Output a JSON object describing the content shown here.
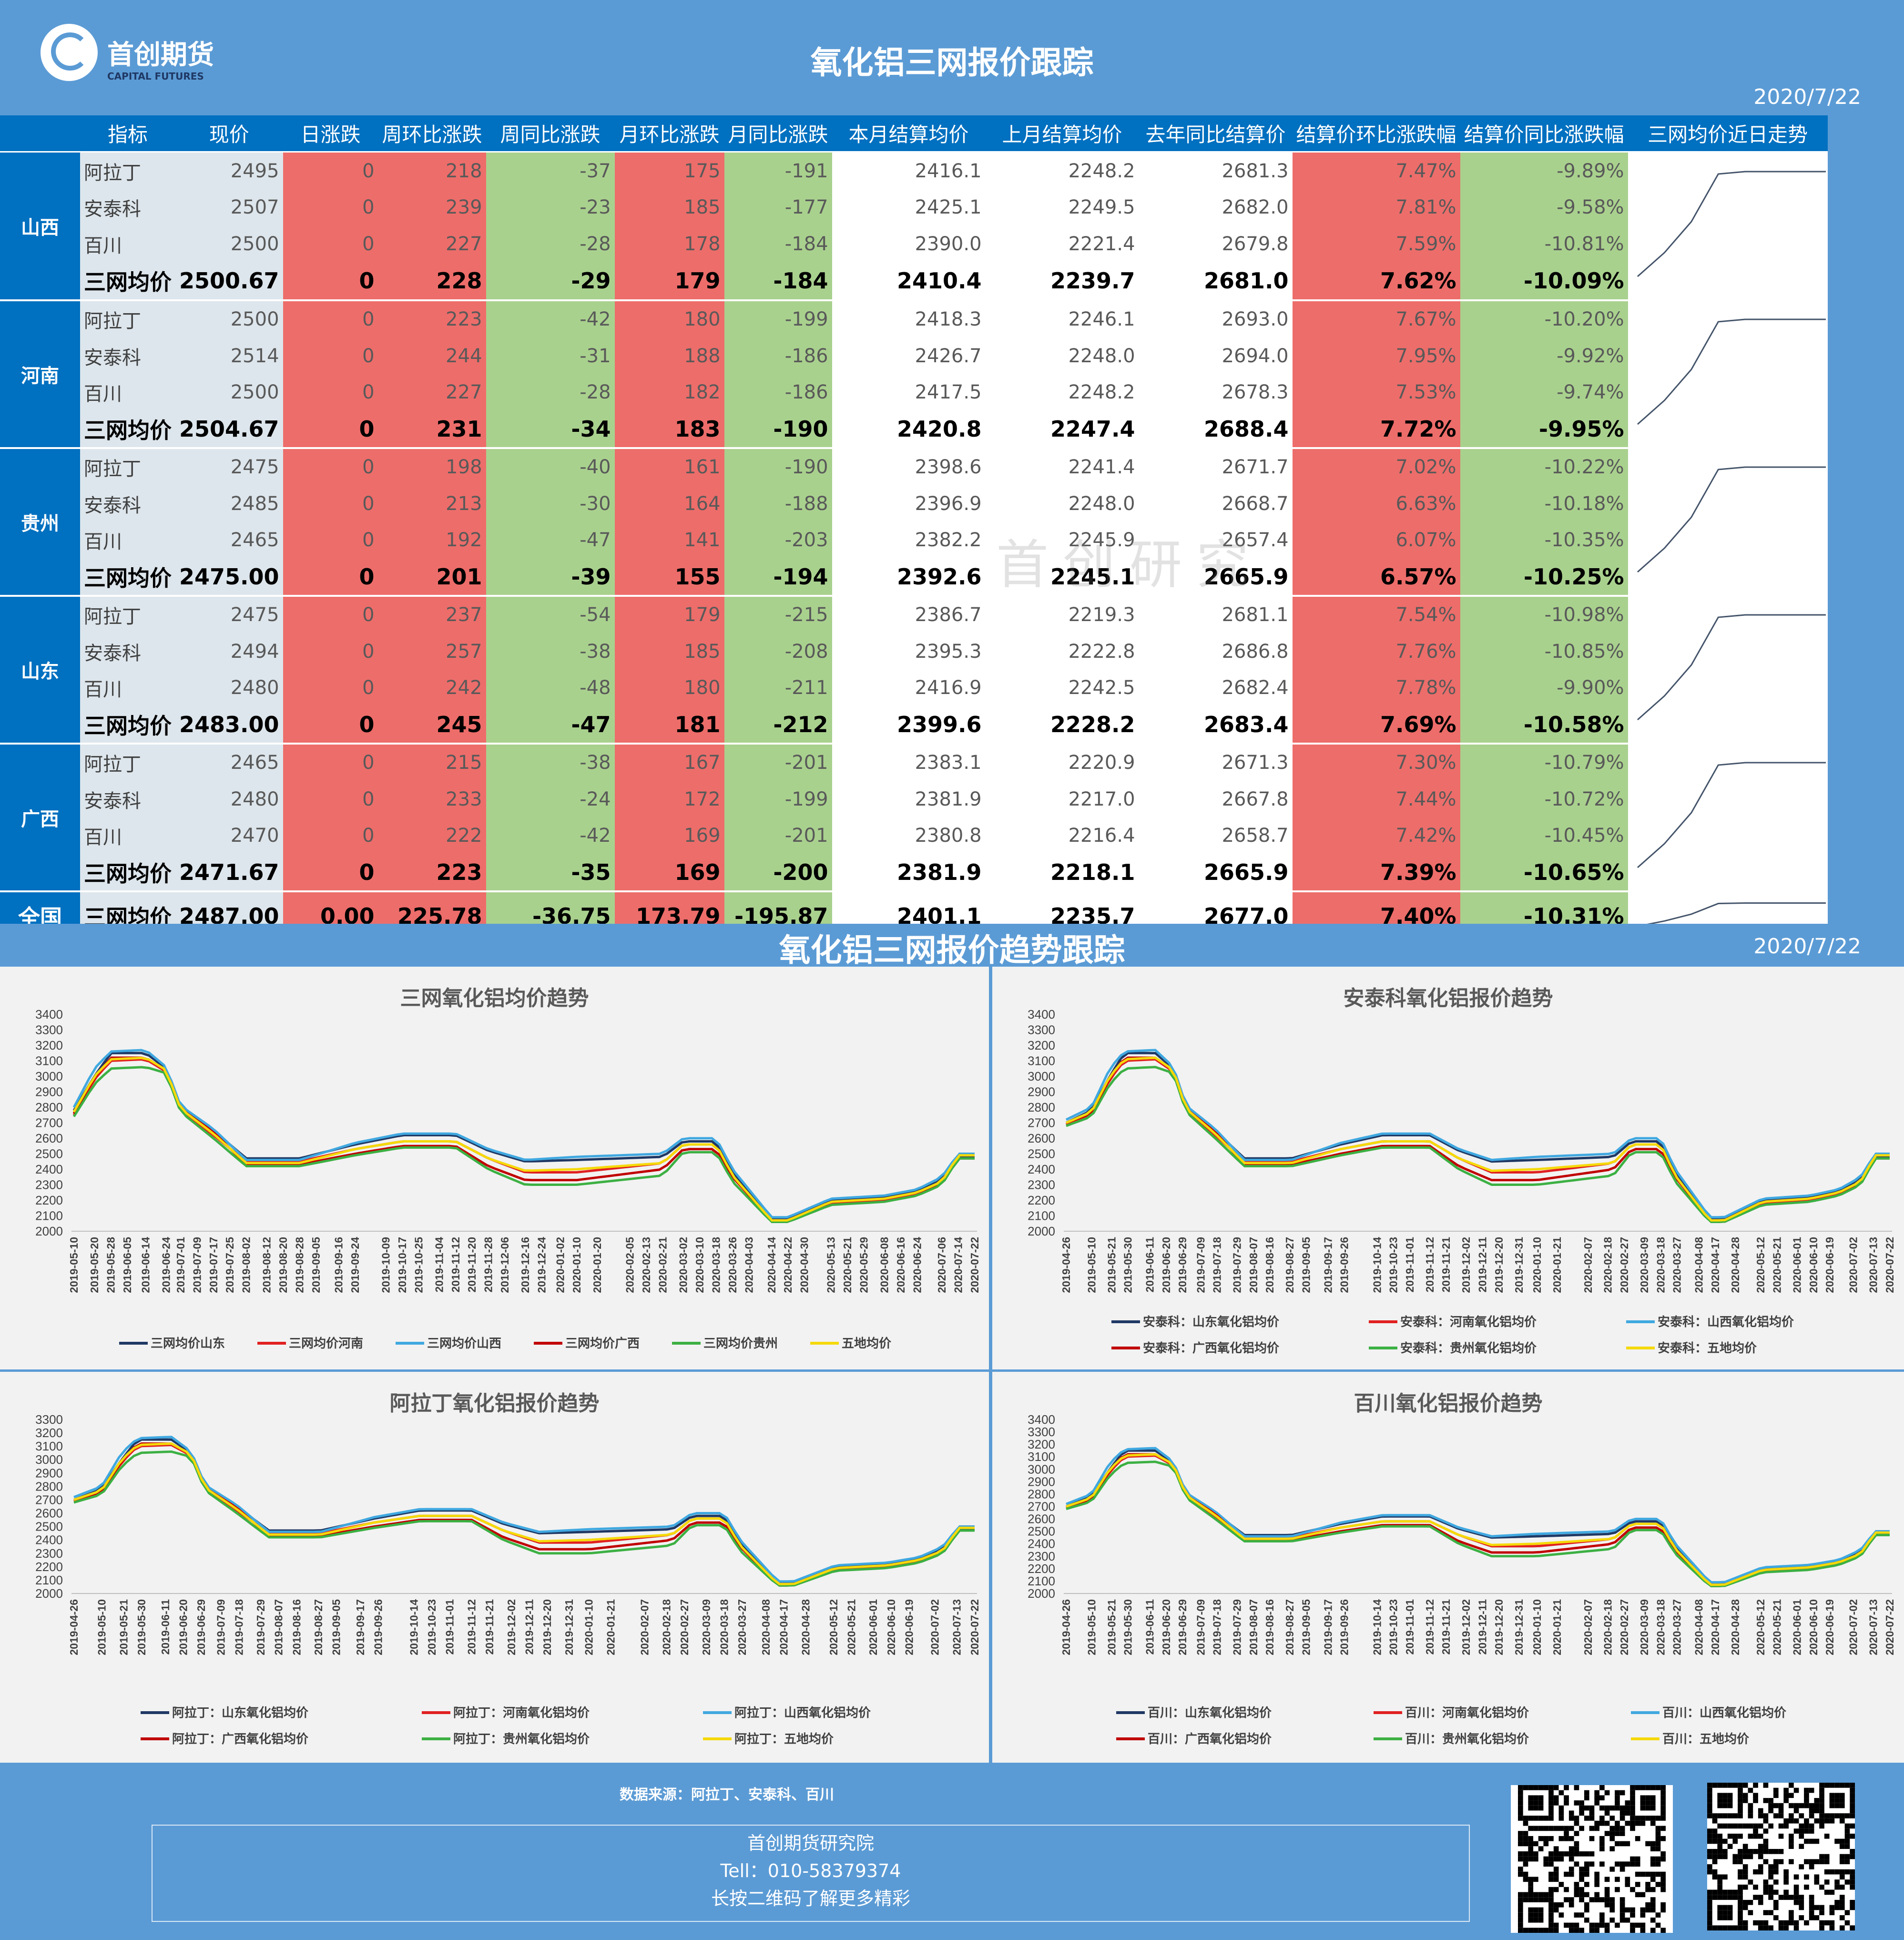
{
  "header": {
    "logo_name": "首创期货",
    "logo_en": "CAPITAL FUTURES",
    "title": "氧化铝三网报价跟踪",
    "date": "2020/7/22"
  },
  "table": {
    "columns": [
      "指标",
      "现价",
      "日涨跌",
      "周环比涨跌",
      "周同比涨跌",
      "月环比涨跌",
      "月同比涨跌",
      "本月结算均价",
      "上月结算均价",
      "去年同比结算价",
      "结算价环比涨跌幅",
      "结算价同比涨跌幅",
      "三网均价近日走势"
    ],
    "groups": [
      {
        "region": "山西",
        "rows": [
          {
            "name": "阿拉丁",
            "v": [
              "2495",
              "0",
              "218",
              "-37",
              "175",
              "-191",
              "2416.1",
              "2248.2",
              "2681.3",
              "7.47%",
              "-9.89%"
            ]
          },
          {
            "name": "安泰科",
            "v": [
              "2507",
              "0",
              "239",
              "-23",
              "185",
              "-177",
              "2425.1",
              "2249.5",
              "2682.0",
              "7.81%",
              "-9.58%"
            ]
          },
          {
            "name": "百川",
            "v": [
              "2500",
              "0",
              "227",
              "-28",
              "178",
              "-184",
              "2390.0",
              "2221.4",
              "2679.8",
              "7.59%",
              "-10.81%"
            ]
          },
          {
            "name": "三网均价",
            "v": [
              "2500.67",
              "0",
              "228",
              "-29",
              "179",
              "-184",
              "2410.4",
              "2239.7",
              "2681.0",
              "7.62%",
              "-10.09%"
            ]
          }
        ]
      },
      {
        "region": "河南",
        "rows": [
          {
            "name": "阿拉丁",
            "v": [
              "2500",
              "0",
              "223",
              "-42",
              "180",
              "-199",
              "2418.3",
              "2246.1",
              "2693.0",
              "7.67%",
              "-10.20%"
            ]
          },
          {
            "name": "安泰科",
            "v": [
              "2514",
              "0",
              "244",
              "-31",
              "188",
              "-186",
              "2426.7",
              "2248.0",
              "2694.0",
              "7.95%",
              "-9.92%"
            ]
          },
          {
            "name": "百川",
            "v": [
              "2500",
              "0",
              "227",
              "-28",
              "182",
              "-186",
              "2417.5",
              "2248.2",
              "2678.3",
              "7.53%",
              "-9.74%"
            ]
          },
          {
            "name": "三网均价",
            "v": [
              "2504.67",
              "0",
              "231",
              "-34",
              "183",
              "-190",
              "2420.8",
              "2247.4",
              "2688.4",
              "7.72%",
              "-9.95%"
            ]
          }
        ]
      },
      {
        "region": "贵州",
        "rows": [
          {
            "name": "阿拉丁",
            "v": [
              "2475",
              "0",
              "198",
              "-40",
              "161",
              "-190",
              "2398.6",
              "2241.4",
              "2671.7",
              "7.02%",
              "-10.22%"
            ]
          },
          {
            "name": "安泰科",
            "v": [
              "2485",
              "0",
              "213",
              "-30",
              "164",
              "-188",
              "2396.9",
              "2248.0",
              "2668.7",
              "6.63%",
              "-10.18%"
            ]
          },
          {
            "name": "百川",
            "v": [
              "2465",
              "0",
              "192",
              "-47",
              "141",
              "-203",
              "2382.2",
              "2245.9",
              "2657.4",
              "6.07%",
              "-10.35%"
            ]
          },
          {
            "name": "三网均价",
            "v": [
              "2475.00",
              "0",
              "201",
              "-39",
              "155",
              "-194",
              "2392.6",
              "2245.1",
              "2665.9",
              "6.57%",
              "-10.25%"
            ]
          }
        ]
      },
      {
        "region": "山东",
        "rows": [
          {
            "name": "阿拉丁",
            "v": [
              "2475",
              "0",
              "237",
              "-54",
              "179",
              "-215",
              "2386.7",
              "2219.3",
              "2681.1",
              "7.54%",
              "-10.98%"
            ]
          },
          {
            "name": "安泰科",
            "v": [
              "2494",
              "0",
              "257",
              "-38",
              "185",
              "-208",
              "2395.3",
              "2222.8",
              "2686.8",
              "7.76%",
              "-10.85%"
            ]
          },
          {
            "name": "百川",
            "v": [
              "2480",
              "0",
              "242",
              "-48",
              "180",
              "-211",
              "2416.9",
              "2242.5",
              "2682.4",
              "7.78%",
              "-9.90%"
            ]
          },
          {
            "name": "三网均价",
            "v": [
              "2483.00",
              "0",
              "245",
              "-47",
              "181",
              "-212",
              "2399.6",
              "2228.2",
              "2683.4",
              "7.69%",
              "-10.58%"
            ]
          }
        ]
      },
      {
        "region": "广西",
        "rows": [
          {
            "name": "阿拉丁",
            "v": [
              "2465",
              "0",
              "215",
              "-38",
              "167",
              "-201",
              "2383.1",
              "2220.9",
              "2671.3",
              "7.30%",
              "-10.79%"
            ]
          },
          {
            "name": "安泰科",
            "v": [
              "2480",
              "0",
              "233",
              "-24",
              "172",
              "-199",
              "2381.9",
              "2217.0",
              "2667.8",
              "7.44%",
              "-10.72%"
            ]
          },
          {
            "name": "百川",
            "v": [
              "2470",
              "0",
              "222",
              "-42",
              "169",
              "-201",
              "2380.8",
              "2216.4",
              "2658.7",
              "7.42%",
              "-10.45%"
            ]
          },
          {
            "name": "三网均价",
            "v": [
              "2471.67",
              "0",
              "223",
              "-35",
              "169",
              "-200",
              "2381.9",
              "2218.1",
              "2665.9",
              "7.39%",
              "-10.65%"
            ]
          }
        ]
      },
      {
        "region": "全国",
        "rows": [
          {
            "name": "三网均价",
            "v": [
              "2487.00",
              "0.00",
              "225.78",
              "-36.75",
              "173.79",
              "-195.87",
              "2401.1",
              "2235.7",
              "2677.0",
              "7.40%",
              "-10.31%"
            ]
          }
        ]
      }
    ],
    "sparkline_values": [
      2280,
      2330,
      2395,
      2495,
      2500,
      2500,
      2500,
      2500
    ]
  },
  "section2": {
    "title": "氧化铝三网报价趋势跟踪",
    "date": "2020/7/22"
  },
  "watermark": "首创研究",
  "chart_data": [
    {
      "type": "line",
      "title": "三网氧化铝均价趋势",
      "ylim": [
        2000,
        3400
      ],
      "x": [
        "2019-05-10",
        "2019-05-20",
        "2019-05-28",
        "2019-06-05",
        "2019-06-14",
        "2019-06-24",
        "2019-07-01",
        "2019-07-09",
        "2019-07-17",
        "2019-07-25",
        "2019-08-02",
        "2019-08-12",
        "2019-08-20",
        "2019-08-28",
        "2019-09-05",
        "2019-09-16",
        "2019-09-24",
        "2019-10-09",
        "2019-10-17",
        "2019-10-25",
        "2019-11-04",
        "2019-11-12",
        "2019-11-20",
        "2019-11-28",
        "2019-12-06",
        "2019-12-16",
        "2019-12-24",
        "2020-01-02",
        "2020-01-10",
        "2020-01-20",
        "2020-02-05",
        "2020-02-13",
        "2020-02-21",
        "2020-03-02",
        "2020-03-10",
        "2020-03-18",
        "2020-03-26",
        "2020-04-03",
        "2020-04-14",
        "2020-04-22",
        "2020-04-30",
        "2020-05-13",
        "2020-05-21",
        "2020-05-29",
        "2020-06-08",
        "2020-06-16",
        "2020-06-24",
        "2020-07-06",
        "2020-07-14",
        "2020-07-22"
      ],
      "series": [
        {
          "name": "三网均价山东",
          "color": "#1f3864"
        },
        {
          "name": "三网均价河南",
          "color": "#e02020"
        },
        {
          "name": "三网均价山西",
          "color": "#40a8e0"
        },
        {
          "name": "三网均价广西",
          "color": "#c00000"
        },
        {
          "name": "三网均价贵州",
          "color": "#3cb043"
        },
        {
          "name": "五地均价",
          "color": "#f5d90a"
        }
      ]
    },
    {
      "type": "line",
      "title": "安泰科氧化铝报价趋势",
      "ylim": [
        2000,
        3400
      ],
      "x": [
        "2019-04-26",
        "2019-05-10",
        "2019-05-21",
        "2019-05-30",
        "2019-06-11",
        "2019-06-20",
        "2019-06-29",
        "2019-07-09",
        "2019-07-18",
        "2019-07-29",
        "2019-08-07",
        "2019-08-16",
        "2019-08-27",
        "2019-09-05",
        "2019-09-17",
        "2019-09-26",
        "2019-10-14",
        "2019-10-23",
        "2019-11-01",
        "2019-11-12",
        "2019-11-21",
        "2019-12-02",
        "2019-12-11",
        "2019-12-20",
        "2019-12-31",
        "2020-01-10",
        "2020-01-21",
        "2020-02-07",
        "2020-02-18",
        "2020-02-27",
        "2020-03-09",
        "2020-03-18",
        "2020-03-27",
        "2020-04-08",
        "2020-04-17",
        "2020-04-28",
        "2020-05-12",
        "2020-05-21",
        "2020-06-01",
        "2020-06-10",
        "2020-06-19",
        "2020-07-02",
        "2020-07-13",
        "2020-07-22"
      ],
      "series": [
        {
          "name": "安泰科：山东氧化铝均价",
          "color": "#1f3864"
        },
        {
          "name": "安泰科：河南氧化铝均价",
          "color": "#e02020"
        },
        {
          "name": "安泰科：山西氧化铝均价",
          "color": "#40a8e0"
        },
        {
          "name": "安泰科：广西氧化铝均价",
          "color": "#c00000"
        },
        {
          "name": "安泰科：贵州氧化铝均价",
          "color": "#3cb043"
        },
        {
          "name": "安泰科：五地均价",
          "color": "#f5d90a"
        }
      ]
    },
    {
      "type": "line",
      "title": "阿拉丁氧化铝报价趋势",
      "ylim": [
        2000,
        3300
      ],
      "x": [
        "2019-04-26",
        "2019-05-10",
        "2019-05-21",
        "2019-05-30",
        "2019-06-11",
        "2019-06-20",
        "2019-06-29",
        "2019-07-09",
        "2019-07-18",
        "2019-07-29",
        "2019-08-07",
        "2019-08-16",
        "2019-08-27",
        "2019-09-05",
        "2019-09-17",
        "2019-09-26",
        "2019-10-14",
        "2019-10-23",
        "2019-11-01",
        "2019-11-12",
        "2019-11-21",
        "2019-12-02",
        "2019-12-11",
        "2019-12-20",
        "2019-12-31",
        "2020-01-10",
        "2020-01-21",
        "2020-02-07",
        "2020-02-18",
        "2020-02-27",
        "2020-03-09",
        "2020-03-18",
        "2020-03-27",
        "2020-04-08",
        "2020-04-17",
        "2020-04-28",
        "2020-05-12",
        "2020-05-21",
        "2020-06-01",
        "2020-06-10",
        "2020-06-19",
        "2020-07-02",
        "2020-07-13",
        "2020-07-22"
      ],
      "series": [
        {
          "name": "阿拉丁：山东氧化铝均价",
          "color": "#1f3864"
        },
        {
          "name": "阿拉丁：河南氧化铝均价",
          "color": "#e02020"
        },
        {
          "name": "阿拉丁：山西氧化铝均价",
          "color": "#40a8e0"
        },
        {
          "name": "阿拉丁：广西氧化铝均价",
          "color": "#c00000"
        },
        {
          "name": "阿拉丁：贵州氧化铝均价",
          "color": "#3cb043"
        },
        {
          "name": "阿拉丁：五地均价",
          "color": "#f5d90a"
        }
      ]
    },
    {
      "type": "line",
      "title": "百川氧化铝报价趋势",
      "ylim": [
        2000,
        3400
      ],
      "x": [
        "2019-04-26",
        "2019-05-10",
        "2019-05-21",
        "2019-05-30",
        "2019-06-11",
        "2019-06-20",
        "2019-06-29",
        "2019-07-09",
        "2019-07-18",
        "2019-07-29",
        "2019-08-07",
        "2019-08-16",
        "2019-08-27",
        "2019-09-05",
        "2019-09-17",
        "2019-09-26",
        "2019-10-14",
        "2019-10-23",
        "2019-11-01",
        "2019-11-12",
        "2019-11-21",
        "2019-12-02",
        "2019-12-11",
        "2019-12-20",
        "2019-12-31",
        "2020-01-10",
        "2020-01-21",
        "2020-02-07",
        "2020-02-18",
        "2020-02-27",
        "2020-03-09",
        "2020-03-18",
        "2020-03-27",
        "2020-04-08",
        "2020-04-17",
        "2020-04-28",
        "2020-05-12",
        "2020-05-21",
        "2020-06-01",
        "2020-06-10",
        "2020-06-19",
        "2020-07-02",
        "2020-07-13",
        "2020-07-22"
      ],
      "series": [
        {
          "name": "百川：山东氧化铝均价",
          "color": "#1f3864"
        },
        {
          "name": "百川：河南氧化铝均价",
          "color": "#e02020"
        },
        {
          "name": "百川：山西氧化铝均价",
          "color": "#40a8e0"
        },
        {
          "name": "百川：广西氧化铝均价",
          "color": "#c00000"
        },
        {
          "name": "百川：贵州氧化铝均价",
          "color": "#3cb043"
        },
        {
          "name": "百川：五地均价",
          "color": "#f5d90a"
        }
      ]
    }
  ],
  "trend_profile": {
    "dates": [
      "2019-04-26",
      "2019-05-10",
      "2019-05-20",
      "2019-05-28",
      "2019-06-14",
      "2019-06-24",
      "2019-07-01",
      "2019-07-17",
      "2019-08-02",
      "2019-08-28",
      "2019-09-24",
      "2019-10-17",
      "2019-11-12",
      "2019-11-28",
      "2019-12-16",
      "2020-01-10",
      "2020-02-21",
      "2020-03-02",
      "2020-03-18",
      "2020-03-26",
      "2020-04-14",
      "2020-04-22",
      "2020-05-13",
      "2020-06-08",
      "2020-06-24",
      "2020-07-06",
      "2020-07-14",
      "2020-07-22"
    ],
    "山东": [
      2700,
      2780,
      3000,
      3150,
      3150,
      3050,
      2800,
      2650,
      2470,
      2470,
      2560,
      2620,
      2620,
      2520,
      2450,
      2460,
      2480,
      2580,
      2580,
      2380,
      2080,
      2080,
      2200,
      2220,
      2260,
      2330,
      2480,
      2480
    ],
    "河南": [
      2690,
      2750,
      2980,
      3100,
      3110,
      3030,
      2780,
      2620,
      2450,
      2450,
      2530,
      2580,
      2580,
      2470,
      2380,
      2380,
      2440,
      2560,
      2560,
      2360,
      2060,
      2060,
      2180,
      2200,
      2240,
      2320,
      2500,
      2500
    ],
    "山西": [
      2720,
      2800,
      3050,
      3160,
      3170,
      3060,
      2810,
      2660,
      2460,
      2460,
      2570,
      2630,
      2630,
      2530,
      2460,
      2480,
      2500,
      2600,
      2600,
      2400,
      2090,
      2090,
      2210,
      2230,
      2270,
      2350,
      2500,
      2500
    ],
    "广西": [
      2700,
      2760,
      2990,
      3120,
      3120,
      3040,
      2790,
      2640,
      2430,
      2430,
      2500,
      2550,
      2550,
      2420,
      2330,
      2330,
      2400,
      2530,
      2530,
      2350,
      2070,
      2070,
      2190,
      2210,
      2250,
      2310,
      2470,
      2470
    ],
    "贵州": [
      2680,
      2740,
      2950,
      3050,
      3060,
      3020,
      2770,
      2600,
      2420,
      2420,
      2490,
      2540,
      2540,
      2400,
      2300,
      2300,
      2360,
      2510,
      2510,
      2320,
      2060,
      2060,
      2170,
      2190,
      2230,
      2300,
      2470,
      2470
    ],
    "五地均价": [
      2700,
      2770,
      3000,
      3110,
      3120,
      3040,
      2790,
      2630,
      2440,
      2440,
      2530,
      2580,
      2580,
      2470,
      2390,
      2400,
      2440,
      2560,
      2560,
      2360,
      2070,
      2070,
      2190,
      2210,
      2250,
      2320,
      2490,
      2490
    ]
  },
  "footer": {
    "source": "数据来源：阿拉丁、安泰科、百川",
    "org": "首创期货研究院",
    "tel": "Tell：010-58379374",
    "slogan": "长按二维码了解更多精彩"
  }
}
